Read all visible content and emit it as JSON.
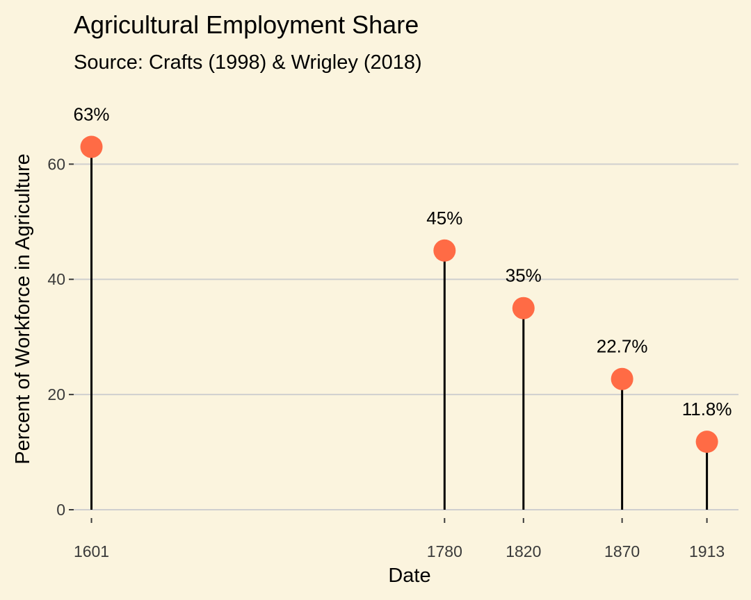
{
  "chart_data": {
    "type": "lollipop",
    "title": "Agricultural Employment Share",
    "subtitle": "Source: Crafts (1998) & Wrigley (2018)",
    "xlabel": "Date",
    "ylabel": "Percent of Workforce in Agriculture",
    "x": [
      1601,
      1780,
      1820,
      1870,
      1913
    ],
    "values": [
      63,
      45,
      35,
      22.7,
      11.8
    ],
    "data_labels": [
      "63%",
      "45%",
      "35%",
      "22.7%",
      "11.8%"
    ],
    "x_ticks": [
      "1601",
      "1780",
      "1820",
      "1870",
      "1913"
    ],
    "y_ticks": [
      0,
      20,
      40,
      60
    ],
    "y_tick_labels": [
      "0",
      "20",
      "40",
      "60"
    ],
    "xlim": [
      1592,
      1929
    ],
    "ylim": [
      0,
      68
    ],
    "grid": "horizontal",
    "legend": "none",
    "colors": {
      "background": "#FBF4DE",
      "point": "#FF6B45",
      "stem": "#000000",
      "grid": "#CFCFCF"
    }
  }
}
